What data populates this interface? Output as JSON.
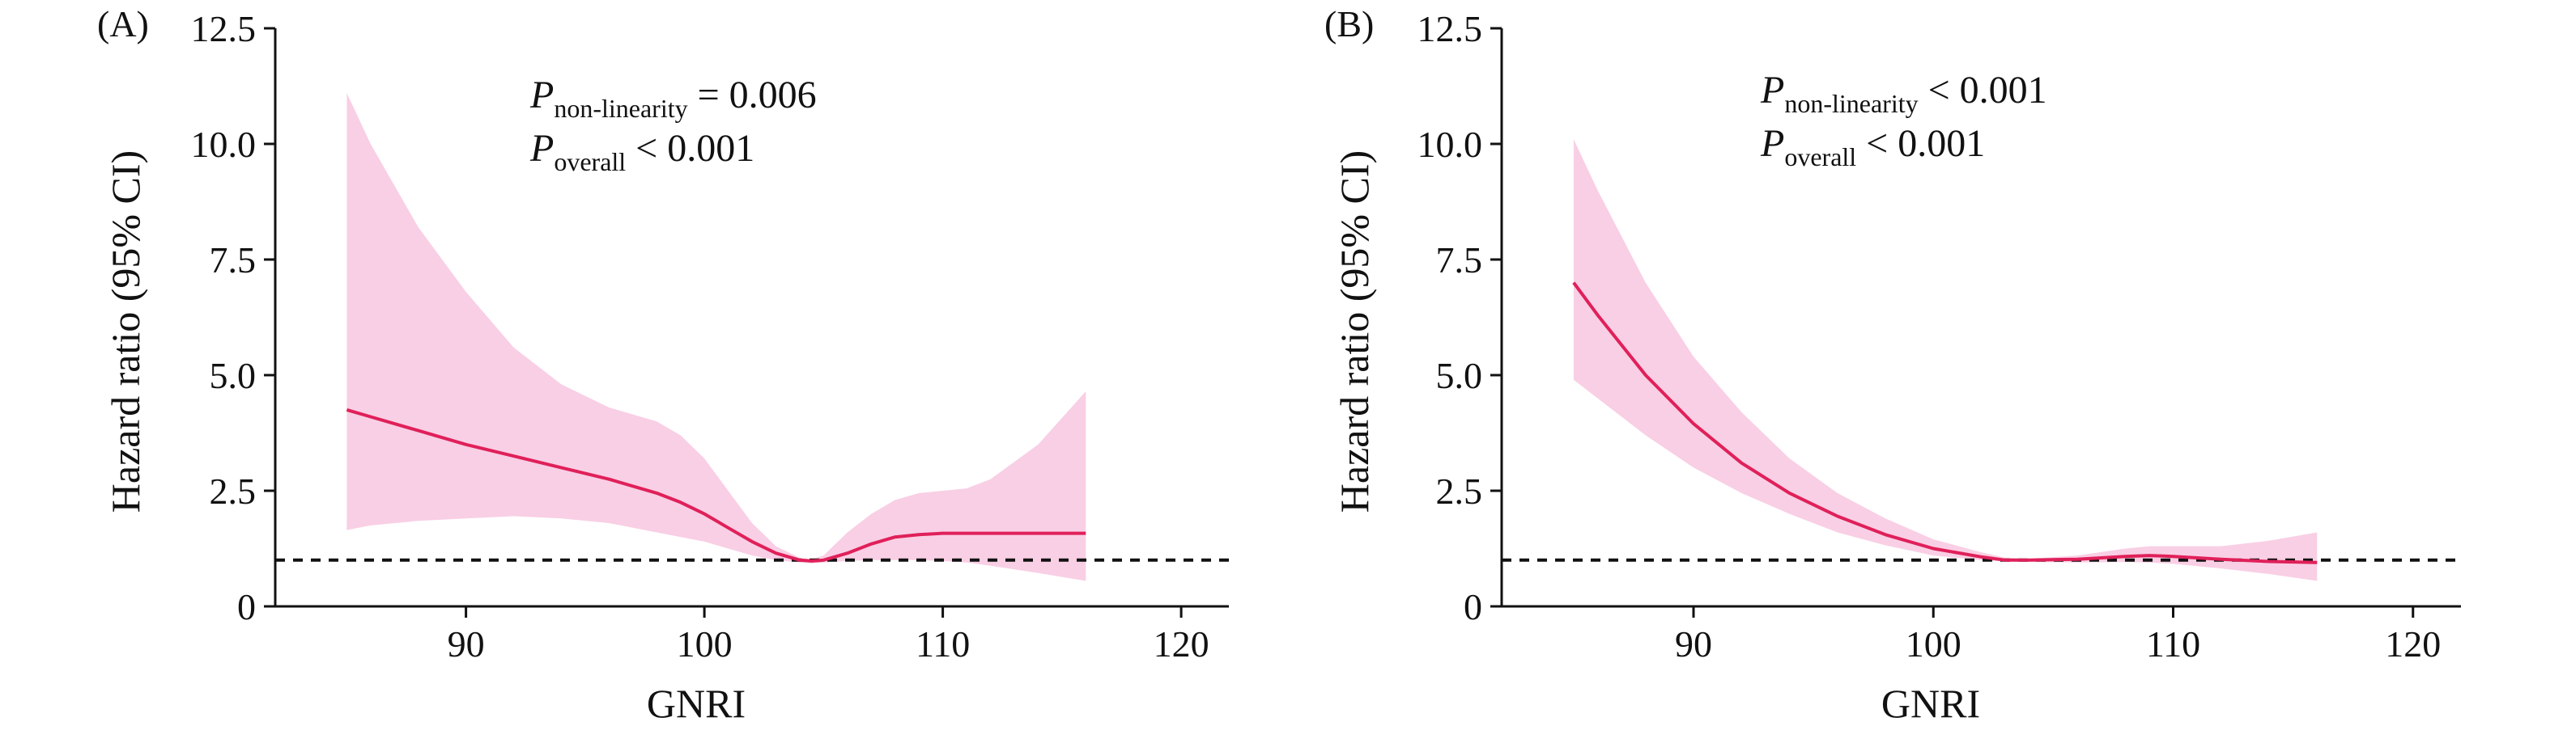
{
  "colors": {
    "band": "#f9cfe5",
    "line": "#e0205a",
    "axis": "#111111",
    "reference": "#111111"
  },
  "chart_data": [
    {
      "type": "line",
      "panel_label": "(A)",
      "xlabel": "GNRI",
      "ylabel": "Hazard ratio (95% CI)",
      "xlim": [
        82,
        122
      ],
      "ylim": [
        0,
        12.5
      ],
      "x_ticks": [
        "90",
        "100",
        "110",
        "120"
      ],
      "y_ticks": [
        "0",
        "2.5",
        "5.0",
        "7.5",
        "10.0",
        "12.5"
      ],
      "reference_line": 1,
      "annotation": [
        {
          "main": "P",
          "sub": "non-linearity",
          "rest": " = 0.006"
        },
        {
          "main": "P",
          "sub": "overall",
          "rest": " < 0.001"
        }
      ],
      "series": [
        {
          "x": [
            85,
            86,
            88,
            90,
            92,
            94,
            96,
            98,
            99,
            100,
            101,
            102,
            103,
            104,
            104.5,
            105,
            106,
            107,
            108,
            109,
            110,
            111,
            112,
            114,
            116
          ],
          "y": [
            4.25,
            4.1,
            3.8,
            3.5,
            3.25,
            3.0,
            2.75,
            2.45,
            2.25,
            2.0,
            1.7,
            1.4,
            1.15,
            1.0,
            0.98,
            1.0,
            1.15,
            1.35,
            1.5,
            1.55,
            1.58,
            1.58,
            1.58,
            1.58,
            1.58
          ],
          "lower": [
            1.65,
            1.75,
            1.85,
            1.9,
            1.95,
            1.9,
            1.8,
            1.6,
            1.5,
            1.4,
            1.25,
            1.1,
            1.0,
            0.95,
            0.93,
            0.95,
            0.98,
            1.0,
            1.0,
            1.0,
            0.98,
            0.95,
            0.88,
            0.72,
            0.55
          ],
          "upper": [
            11.1,
            10.0,
            8.2,
            6.8,
            5.6,
            4.8,
            4.3,
            4.0,
            3.7,
            3.2,
            2.5,
            1.8,
            1.3,
            1.05,
            1.02,
            1.1,
            1.6,
            2.0,
            2.3,
            2.45,
            2.5,
            2.55,
            2.75,
            3.5,
            4.65
          ]
        }
      ]
    },
    {
      "type": "line",
      "panel_label": "(B)",
      "xlabel": "GNRI",
      "ylabel": "Hazard ratio (95% CI)",
      "xlim": [
        82,
        122
      ],
      "ylim": [
        0,
        12.5
      ],
      "x_ticks": [
        "90",
        "100",
        "110",
        "120"
      ],
      "y_ticks": [
        "0",
        "2.5",
        "5.0",
        "7.5",
        "10.0",
        "12.5"
      ],
      "reference_line": 1,
      "annotation": [
        {
          "main": "P",
          "sub": "non-linearity",
          "rest": " < 0.001"
        },
        {
          "main": "P",
          "sub": "overall",
          "rest": " < 0.001"
        }
      ],
      "series": [
        {
          "x": [
            85,
            86,
            88,
            90,
            92,
            94,
            96,
            98,
            100,
            102,
            103,
            104,
            106,
            108,
            109,
            110,
            112,
            114,
            116
          ],
          "y": [
            7.0,
            6.3,
            5.0,
            3.95,
            3.1,
            2.45,
            1.95,
            1.55,
            1.25,
            1.07,
            1.0,
            1.0,
            1.02,
            1.08,
            1.1,
            1.08,
            1.02,
            0.97,
            0.95
          ],
          "lower": [
            4.9,
            4.5,
            3.7,
            3.0,
            2.45,
            2.0,
            1.6,
            1.32,
            1.1,
            1.0,
            0.97,
            0.96,
            0.95,
            0.96,
            0.95,
            0.92,
            0.82,
            0.7,
            0.55
          ],
          "upper": [
            10.1,
            9.0,
            7.0,
            5.4,
            4.2,
            3.2,
            2.45,
            1.9,
            1.45,
            1.17,
            1.05,
            1.03,
            1.1,
            1.25,
            1.3,
            1.3,
            1.3,
            1.42,
            1.6
          ]
        }
      ]
    }
  ]
}
